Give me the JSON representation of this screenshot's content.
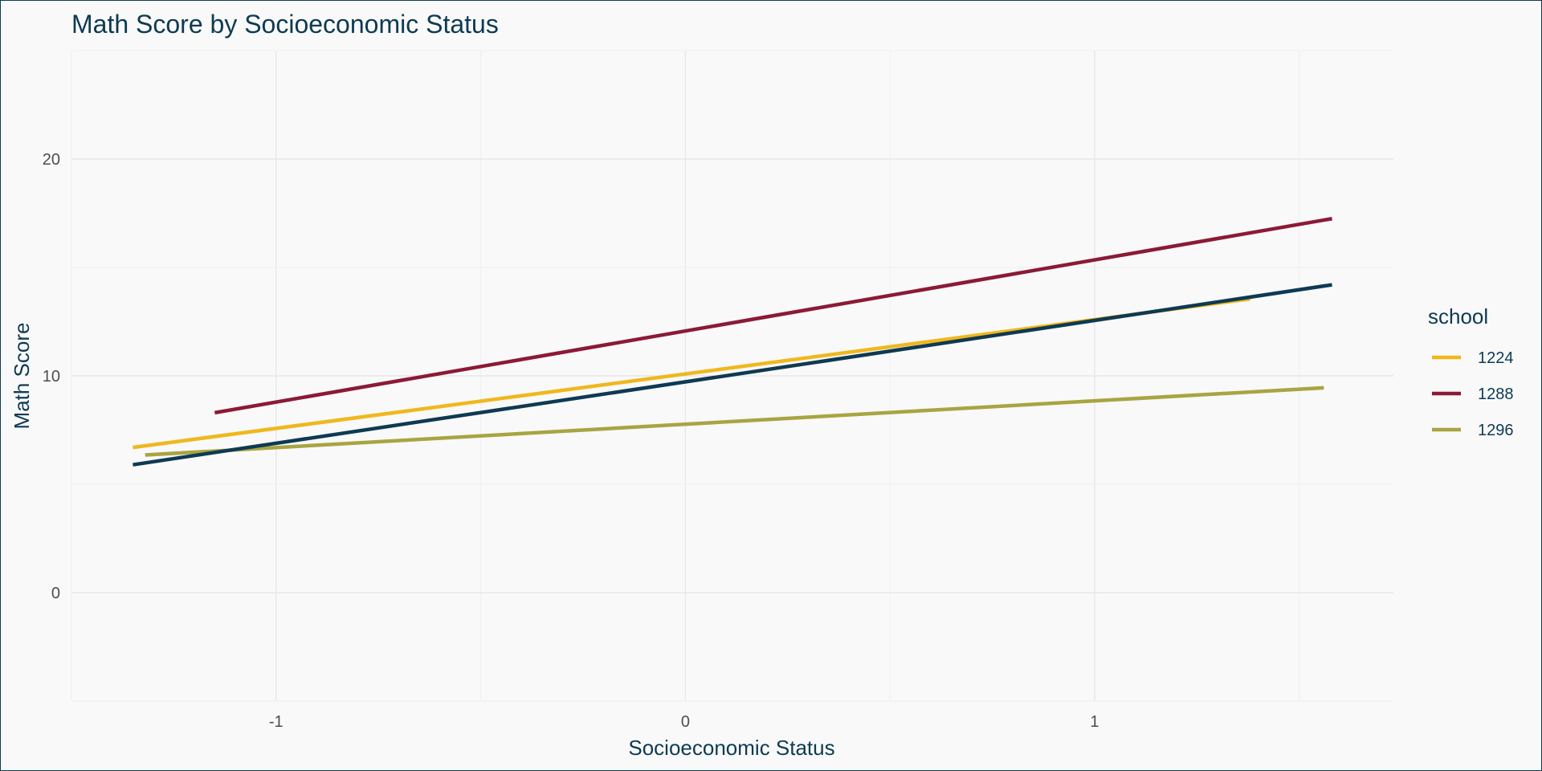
{
  "chart_data": {
    "type": "line",
    "title": "Math Score by Socioeconomic Status",
    "xlabel": "Socioeconomic Status",
    "ylabel": "Math Score",
    "xlim": [
      -1.5,
      1.73
    ],
    "ylim": [
      -5,
      25
    ],
    "x_ticks": [
      -1,
      0,
      1
    ],
    "y_ticks": [
      0,
      10,
      20
    ],
    "grid": true,
    "legend": {
      "title": "school",
      "position": "right"
    },
    "series": [
      {
        "name": "1224",
        "color": "#f0b81e",
        "x": [
          -1.35,
          1.38
        ],
        "y": [
          6.7,
          13.55
        ]
      },
      {
        "name": "1288",
        "color": "#8c1a35",
        "x": [
          -1.15,
          1.58
        ],
        "y": [
          8.3,
          17.25
        ]
      },
      {
        "name": "1296",
        "color": "#a8a542",
        "x": [
          -1.32,
          1.56
        ],
        "y": [
          6.35,
          9.45
        ]
      },
      {
        "name": "",
        "color": "#0e3a52",
        "x": [
          -1.35,
          1.58
        ],
        "y": [
          5.9,
          14.2
        ]
      }
    ]
  }
}
